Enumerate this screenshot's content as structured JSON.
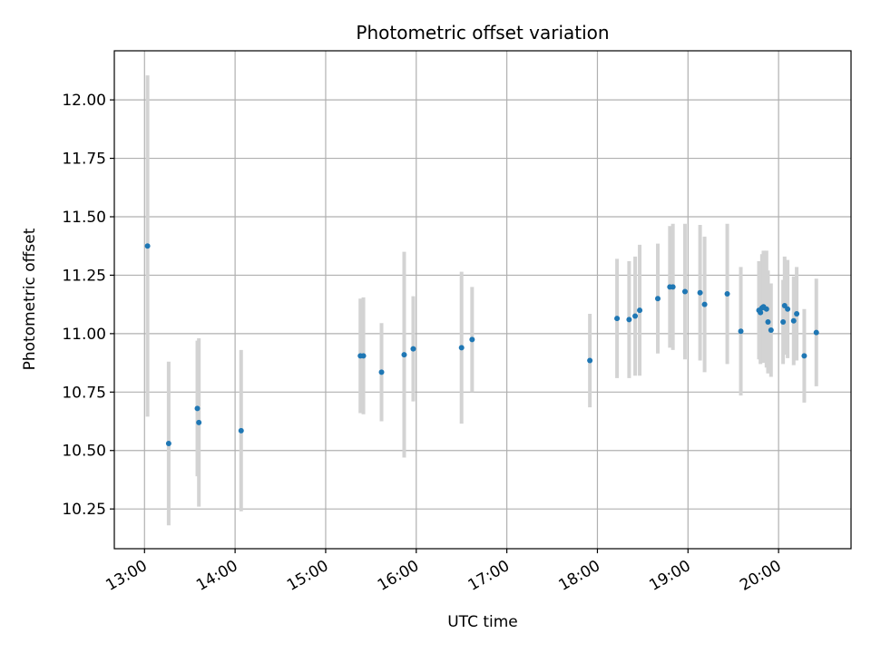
{
  "chart_data": {
    "type": "scatter",
    "title": "Photometric offset variation",
    "xlabel": "UTC time",
    "ylabel": "Photometric offset",
    "xlim": [
      "12:40",
      "20:48"
    ],
    "ylim": [
      10.08,
      12.21
    ],
    "x_ticks": [
      "13:00",
      "14:00",
      "15:00",
      "16:00",
      "17:00",
      "18:00",
      "19:00",
      "20:00"
    ],
    "y_ticks": [
      "10.25",
      "10.50",
      "10.75",
      "11.00",
      "11.25",
      "11.50",
      "11.75",
      "12.00"
    ],
    "grid": true,
    "colors": {
      "points": "#1f77b4",
      "errorbars": "#d3d3d3",
      "grid": "#b0b0b0"
    },
    "points": [
      {
        "t": "13:02",
        "y": 11.375,
        "err": 0.73
      },
      {
        "t": "13:16",
        "y": 10.53,
        "err": 0.35
      },
      {
        "t": "13:35",
        "y": 10.68,
        "err": 0.29
      },
      {
        "t": "13:36",
        "y": 10.62,
        "err": 0.36
      },
      {
        "t": "14:04",
        "y": 10.585,
        "err": 0.345
      },
      {
        "t": "15:23",
        "y": 10.905,
        "err": 0.245
      },
      {
        "t": "15:25",
        "y": 10.905,
        "err": 0.25
      },
      {
        "t": "15:37",
        "y": 10.835,
        "err": 0.21
      },
      {
        "t": "15:52",
        "y": 10.91,
        "err": 0.44
      },
      {
        "t": "15:58",
        "y": 10.935,
        "err": 0.225
      },
      {
        "t": "16:30",
        "y": 10.94,
        "err": 0.325
      },
      {
        "t": "16:37",
        "y": 10.975,
        "err": 0.225
      },
      {
        "t": "17:55",
        "y": 10.885,
        "err": 0.2
      },
      {
        "t": "18:13",
        "y": 11.065,
        "err": 0.255
      },
      {
        "t": "18:21",
        "y": 11.06,
        "err": 0.25
      },
      {
        "t": "18:25",
        "y": 11.075,
        "err": 0.255
      },
      {
        "t": "18:28",
        "y": 11.1,
        "err": 0.28
      },
      {
        "t": "18:40",
        "y": 11.15,
        "err": 0.235
      },
      {
        "t": "18:48",
        "y": 11.2,
        "err": 0.26
      },
      {
        "t": "18:50",
        "y": 11.2,
        "err": 0.27
      },
      {
        "t": "18:58",
        "y": 11.18,
        "err": 0.29
      },
      {
        "t": "19:08",
        "y": 11.175,
        "err": 0.29
      },
      {
        "t": "19:11",
        "y": 11.125,
        "err": 0.29
      },
      {
        "t": "19:26",
        "y": 11.17,
        "err": 0.3
      },
      {
        "t": "19:35",
        "y": 11.01,
        "err": 0.275
      },
      {
        "t": "19:47",
        "y": 11.1,
        "err": 0.21
      },
      {
        "t": "19:48",
        "y": 11.09,
        "err": 0.22
      },
      {
        "t": "19:49",
        "y": 11.11,
        "err": 0.23
      },
      {
        "t": "19:50",
        "y": 11.115,
        "err": 0.24
      },
      {
        "t": "19:52",
        "y": 11.105,
        "err": 0.25
      },
      {
        "t": "19:53",
        "y": 11.05,
        "err": 0.22
      },
      {
        "t": "19:55",
        "y": 11.015,
        "err": 0.2
      },
      {
        "t": "20:03",
        "y": 11.05,
        "err": 0.18
      },
      {
        "t": "20:04",
        "y": 11.12,
        "err": 0.21
      },
      {
        "t": "20:06",
        "y": 11.105,
        "err": 0.21
      },
      {
        "t": "20:10",
        "y": 11.055,
        "err": 0.19
      },
      {
        "t": "20:12",
        "y": 11.085,
        "err": 0.2
      },
      {
        "t": "20:17",
        "y": 10.905,
        "err": 0.2
      },
      {
        "t": "20:25",
        "y": 11.005,
        "err": 0.23
      }
    ]
  }
}
